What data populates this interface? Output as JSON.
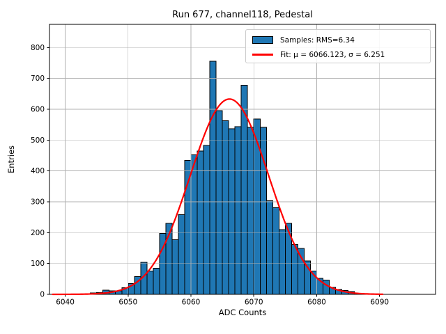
{
  "chart_data": {
    "type": "bar",
    "subtype": "histogram-with-gaussian-fit",
    "title": "Run 677, channel118, Pedestal",
    "xlabel": "ADC Counts",
    "ylabel": "Entries",
    "bin_width": 1,
    "bin_start": 6044,
    "counts": [
      5,
      6,
      14,
      11,
      11,
      21,
      35,
      57,
      104,
      75,
      85,
      197,
      230,
      177,
      258,
      434,
      452,
      465,
      483,
      755,
      595,
      563,
      537,
      543,
      678,
      541,
      568,
      541,
      303,
      281,
      210,
      230,
      161,
      149,
      108,
      76,
      52,
      46,
      22,
      16,
      12,
      9
    ],
    "fit": {
      "mu": 6066.123,
      "sigma": 6.251,
      "amplitude": 633,
      "x_start": 6038.0,
      "x_end": 6090.6
    },
    "x_ticks": [
      6040,
      6050,
      6060,
      6070,
      6080,
      6090
    ],
    "y_ticks": [
      0,
      100,
      200,
      300,
      400,
      500,
      600,
      700,
      800
    ],
    "xlim": [
      6037.5,
      6098.9
    ],
    "ylim": [
      0,
      875
    ],
    "grid": true,
    "legend_position": "upper right",
    "legend": [
      {
        "swatch": "patch",
        "label": "Samples: RMS=6.34"
      },
      {
        "swatch": "line",
        "label": "Fit: μ = 6066.123, σ = 6.251"
      }
    ],
    "colors": {
      "bar_fill": "#1f77b4",
      "bar_edge": "#000000",
      "fit_line": "#ff0000",
      "grid": "#b0b0b0",
      "spine": "#000000",
      "background": "#ffffff"
    }
  }
}
